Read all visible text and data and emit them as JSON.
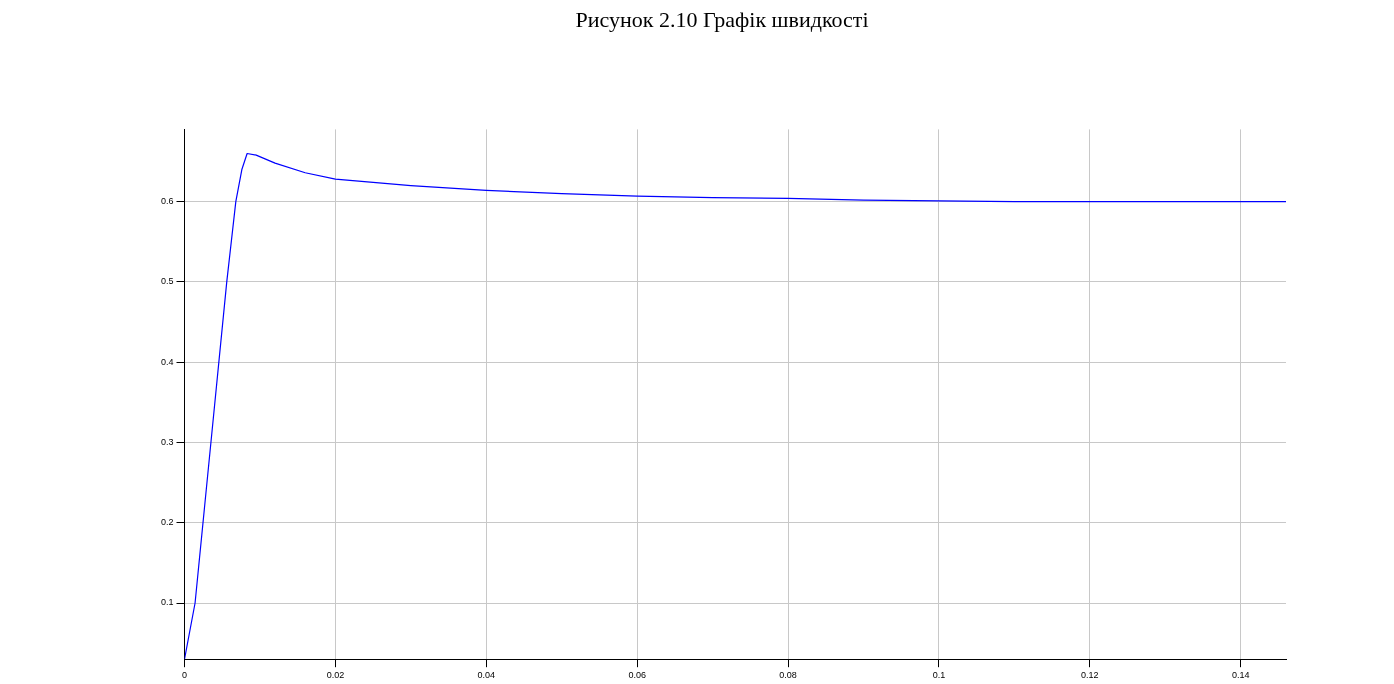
{
  "chart_data": {
    "type": "line",
    "title": "Рисунок 2.10 Графік швидкості",
    "x": [
      0,
      0.0014,
      0.0035,
      0.0056,
      0.0068,
      0.0076,
      0.0083,
      0.0095,
      0.012,
      0.016,
      0.02,
      0.03,
      0.04,
      0.05,
      0.06,
      0.07,
      0.08,
      0.09,
      0.1,
      0.11,
      0.12,
      0.13,
      0.14,
      0.146
    ],
    "series": [
      {
        "color": "#0000ff",
        "values": [
          0.03,
          0.1,
          0.3,
          0.5,
          0.6,
          0.64,
          0.66,
          0.658,
          0.648,
          0.636,
          0.628,
          0.62,
          0.614,
          0.61,
          0.607,
          0.605,
          0.604,
          0.602,
          0.601,
          0.6,
          0.6,
          0.6,
          0.6,
          0.6
        ]
      }
    ],
    "xlim": [
      0,
      0.146
    ],
    "xticks": [
      0,
      0.02,
      0.04,
      0.06,
      0.08,
      0.1,
      0.12,
      0.14
    ],
    "ylim": [
      0.03,
      0.69
    ],
    "yticks": [
      0.1,
      0.2,
      0.3,
      0.4,
      0.5,
      0.6
    ],
    "grid": true,
    "legend": false,
    "marker": "none",
    "line_style": "solid"
  }
}
